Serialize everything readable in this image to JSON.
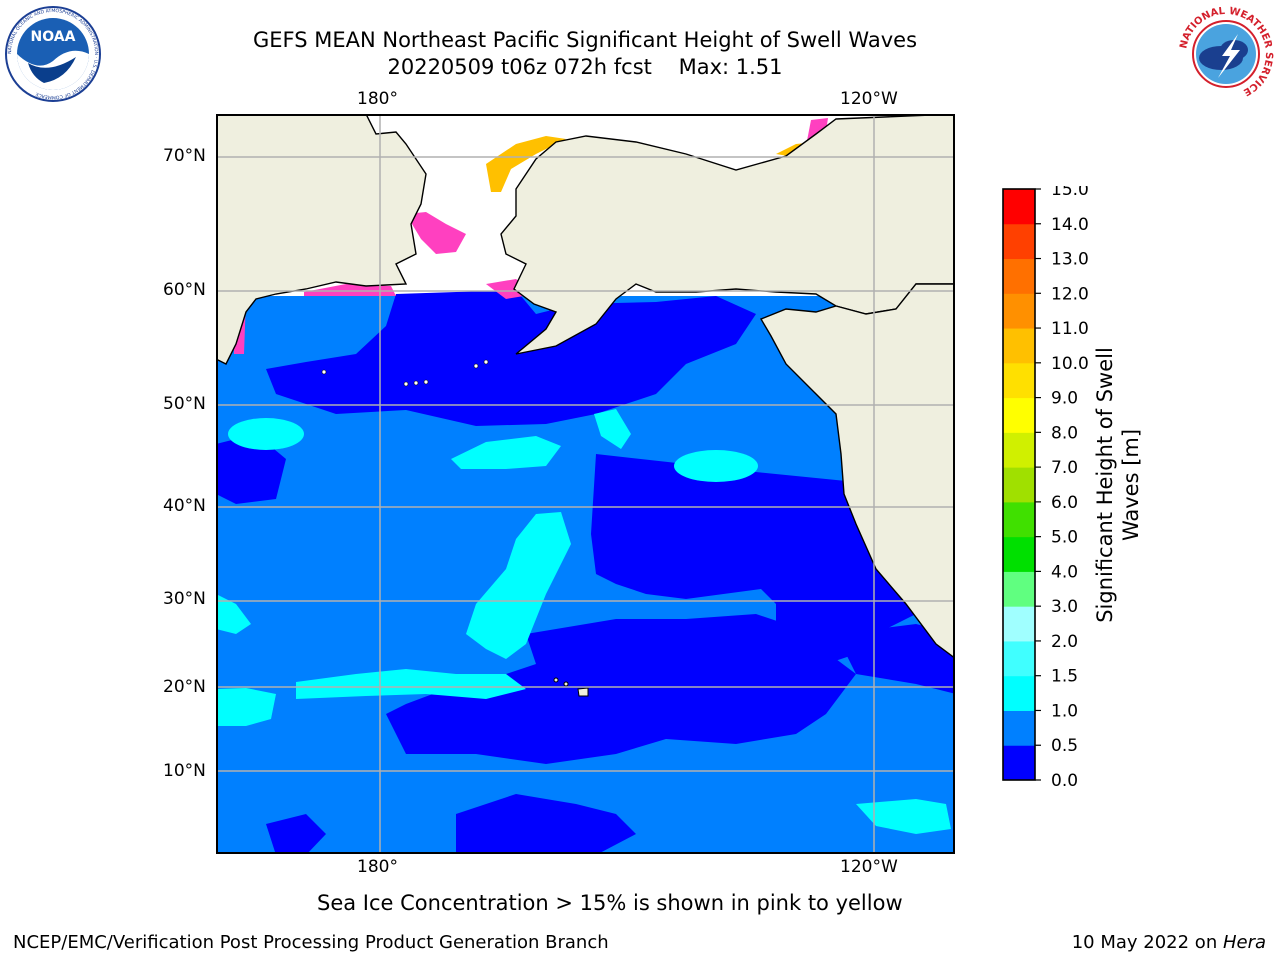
{
  "header": {
    "title_line1": "GEFS MEAN Northeast Pacific Significant Height of Swell Waves",
    "title_line2": "20220509 t06z 072h fcst    Max: 1.51"
  },
  "logos": {
    "left": "NOAA",
    "left_ring_text": "NATIONAL OCEANIC AND ATMOSPHERIC ADMINISTRATION · U.S. DEPARTMENT OF COMMERCE",
    "right_ring_text": "NATIONAL WEATHER SERVICE"
  },
  "map": {
    "lon_labels_top": [
      "180°",
      "120°W"
    ],
    "lon_labels_bottom": [
      "180°",
      "120°W"
    ],
    "lat_labels": [
      "70°N",
      "60°N",
      "50°N",
      "40°N",
      "30°N",
      "20°N",
      "10°N"
    ],
    "colors": {
      "land": "#efefdf",
      "ice_free_polar": "#ffffff",
      "grid": "#b0b0b0",
      "ice": "#ff40c0"
    }
  },
  "colorbar": {
    "label_line1": "Significant Height of Swell",
    "label_line2": "Waves [m]",
    "ticks": [
      "0.0",
      "0.5",
      "1.0",
      "1.5",
      "2.0",
      "3.0",
      "4.0",
      "5.0",
      "6.0",
      "7.0",
      "8.0",
      "9.0",
      "10.0",
      "11.0",
      "12.0",
      "13.0",
      "14.0",
      "15.0"
    ],
    "colors": [
      "#0000ff",
      "#0080ff",
      "#00ffff",
      "#40ffff",
      "#a0ffff",
      "#60ff80",
      "#00e000",
      "#40e000",
      "#a0e000",
      "#d0f000",
      "#ffff00",
      "#ffe000",
      "#ffc000",
      "#ff9000",
      "#ff7000",
      "#ff4000",
      "#ff0000"
    ]
  },
  "footer": {
    "note": "Sea Ice Concentration > 15% is shown in pink to yellow",
    "credit": "NCEP/EMC/Verification Post Processing Product Generation Branch",
    "date_prefix": "10 May 2022 on ",
    "date_host": "Hera"
  }
}
